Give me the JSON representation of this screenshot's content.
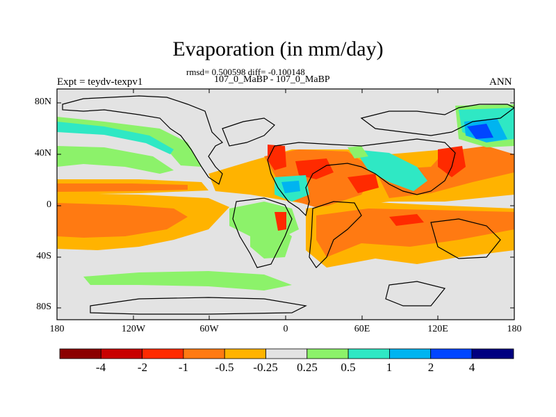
{
  "title": "Evaporation (in mm/day)",
  "stats": "rmsd= 0.500598 diff= -0.100148",
  "period": "107_0_MaBP - 107_0_MaBP",
  "left_label": "Expt = teydv-texpv1",
  "right_label": "ANN",
  "y_ticks": [
    "80N",
    "40N",
    "0",
    "40S",
    "80S"
  ],
  "x_ticks": [
    "180",
    "120W",
    "60W",
    "0",
    "60E",
    "120E",
    "180"
  ],
  "colorbar": {
    "colors": [
      "#8b0000",
      "#c80000",
      "#ff2a00",
      "#ff7a12",
      "#ffb300",
      "#e3e3e3",
      "#8cf26a",
      "#2fe8c4",
      "#00b4f0",
      "#0046ff",
      "#000080"
    ],
    "labels": [
      "-4",
      "-2",
      "-1",
      "-0.5",
      "-0.25",
      "0.25",
      "0.5",
      "1",
      "2",
      "4"
    ]
  },
  "chart_data": {
    "type": "heatmap",
    "title": "Evaporation (in mm/day)",
    "variable": "Evaporation difference",
    "units": "mm/day",
    "experiment": "teydv-texpv1",
    "period": "107_0_MaBP - 107_0_MaBP",
    "season": "ANN",
    "rmsd": 0.500598,
    "diff": -0.100148,
    "lon_range": [
      -180,
      180
    ],
    "lat_range": [
      -90,
      90
    ],
    "lon_ticks": [
      -180,
      -120,
      -60,
      0,
      60,
      120,
      180
    ],
    "lat_ticks": [
      80,
      40,
      0,
      -40,
      -80
    ],
    "contour_levels": [
      -4,
      -2,
      -1,
      -0.5,
      -0.25,
      0.25,
      0.5,
      1,
      2,
      4
    ],
    "regions": [
      {
        "lon": [
          -180,
          -95
        ],
        "lat": [
          5,
          18
        ],
        "value": -0.75
      },
      {
        "lon": [
          -180,
          -100
        ],
        "lat": [
          -25,
          -5
        ],
        "value": -0.75
      },
      {
        "lon": [
          -180,
          -120
        ],
        "lat": [
          28,
          42
        ],
        "value": 0.5
      },
      {
        "lon": [
          -180,
          -110
        ],
        "lat": [
          55,
          70
        ],
        "value": 0.6
      },
      {
        "lon": [
          -25,
          20
        ],
        "lat": [
          20,
          40
        ],
        "value": -1.2
      },
      {
        "lon": [
          -15,
          15
        ],
        "lat": [
          0,
          20
        ],
        "value": 0.6
      },
      {
        "lon": [
          20,
          120
        ],
        "lat": [
          10,
          38
        ],
        "value": -0.8
      },
      {
        "lon": [
          40,
          60
        ],
        "lat": [
          10,
          30
        ],
        "value": -1.5
      },
      {
        "lon": [
          30,
          160
        ],
        "lat": [
          -35,
          0
        ],
        "value": -0.7
      },
      {
        "lon": [
          120,
          140
        ],
        "lat": [
          30,
          45
        ],
        "value": -1.5
      },
      {
        "lon": [
          140,
          170
        ],
        "lat": [
          35,
          55
        ],
        "value": 0.6
      },
      {
        "lon": [
          150,
          170
        ],
        "lat": [
          42,
          52
        ],
        "value": 2.5
      },
      {
        "lon": [
          -180,
          0
        ],
        "lat": [
          -60,
          -45
        ],
        "value": 0.3
      }
    ]
  }
}
